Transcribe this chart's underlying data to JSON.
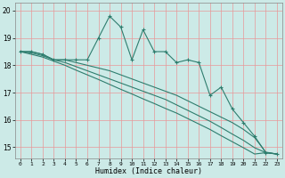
{
  "xlabel": "Humidex (Indice chaleur)",
  "bg_color": "#cceae7",
  "line_color": "#2e7d6e",
  "grid_color_v": "#e89898",
  "grid_color_h": "#e89898",
  "ylim": [
    14.6,
    20.3
  ],
  "xlim": [
    -0.5,
    23.5
  ],
  "yticks": [
    15,
    16,
    17,
    18,
    19,
    20
  ],
  "xticks": [
    0,
    1,
    2,
    3,
    4,
    5,
    6,
    7,
    8,
    9,
    10,
    11,
    12,
    13,
    14,
    15,
    16,
    17,
    18,
    19,
    20,
    21,
    22,
    23
  ],
  "series1": [
    18.5,
    18.5,
    18.4,
    18.2,
    18.2,
    18.2,
    18.2,
    19.0,
    19.8,
    19.4,
    18.2,
    19.3,
    18.5,
    18.5,
    18.1,
    18.2,
    18.1,
    16.9,
    17.2,
    16.4,
    15.9,
    15.4,
    14.8,
    14.75
  ],
  "series2": [
    18.5,
    18.5,
    18.4,
    18.2,
    18.2,
    18.1,
    18.0,
    17.9,
    17.8,
    17.65,
    17.5,
    17.35,
    17.2,
    17.05,
    16.9,
    16.7,
    16.5,
    16.3,
    16.1,
    15.9,
    15.65,
    15.35,
    14.82,
    14.75
  ],
  "series3": [
    18.5,
    18.45,
    18.35,
    18.2,
    18.1,
    17.95,
    17.8,
    17.65,
    17.5,
    17.35,
    17.2,
    17.05,
    16.9,
    16.75,
    16.55,
    16.35,
    16.15,
    15.95,
    15.72,
    15.48,
    15.25,
    14.98,
    14.8,
    14.75
  ],
  "series4": [
    18.5,
    18.4,
    18.3,
    18.15,
    18.0,
    17.82,
    17.65,
    17.48,
    17.3,
    17.12,
    16.95,
    16.77,
    16.6,
    16.42,
    16.25,
    16.05,
    15.85,
    15.65,
    15.42,
    15.2,
    14.98,
    14.75,
    14.8,
    14.75
  ]
}
